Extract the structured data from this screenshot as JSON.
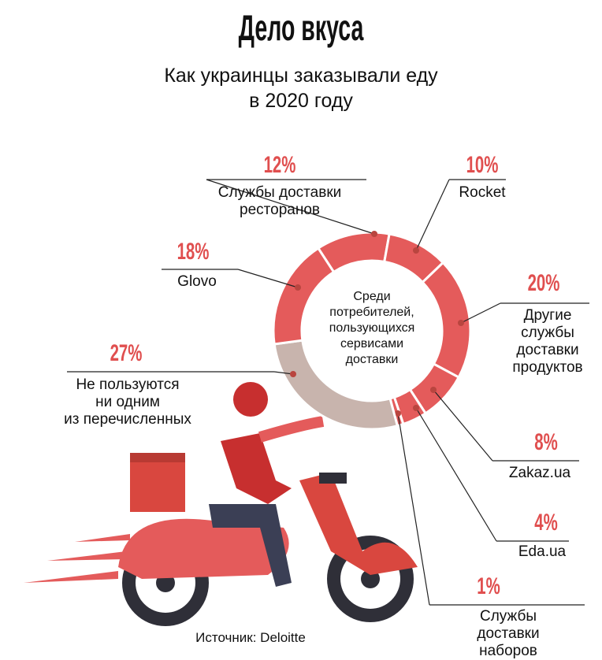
{
  "chart_data": {
    "type": "donut",
    "title": "Дело вкуса",
    "subtitle": "Как украинцы заказывали еду\nв 2020 году",
    "center_label": "Среди\nпотребителей,\nпользующихся\nсервисами\nдоставки",
    "source": "Источник: Deloitte",
    "categories": [
      "Службы доставки\nресторанов",
      "Rocket",
      "Другие\nслужбы\nдоставки\nпродуктов",
      "Zakaz.ua",
      "Eda.ua",
      "Службы доставки\nнаборов питания",
      "Не пользуются\nни одним\nиз перечисленных",
      "Glovo"
    ],
    "values": [
      12,
      10,
      20,
      8,
      4,
      1,
      27,
      18
    ],
    "value_labels": [
      "12%",
      "10%",
      "20%",
      "8%",
      "4%",
      "1%",
      "27%",
      "18%"
    ],
    "colors": [
      "#e45b5b",
      "#e45b5b",
      "#e45b5b",
      "#e45b5b",
      "#e45b5b",
      "#e45b5b",
      "#c8b4ad",
      "#e45b5b"
    ]
  }
}
